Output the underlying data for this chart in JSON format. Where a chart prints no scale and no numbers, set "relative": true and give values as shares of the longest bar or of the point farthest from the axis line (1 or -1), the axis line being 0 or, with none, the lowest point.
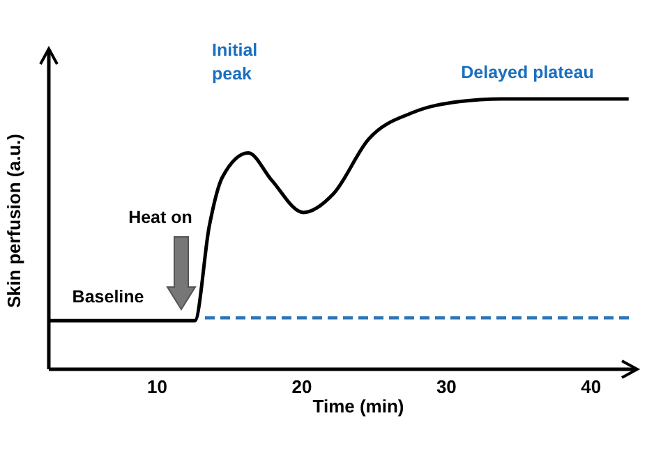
{
  "chart_data": {
    "type": "line",
    "xlabel": "Time (min)",
    "ylabel": "Skin perfusion (a.u.)",
    "relative": true,
    "xlim": [
      2.5,
      43
    ],
    "xticks": [
      10,
      20,
      30,
      40
    ],
    "marker": "none",
    "series": [
      {
        "color": "#000000",
        "line_style": "solid",
        "x": [
          2.5,
          12.6,
          13.6,
          14.5,
          16.3,
          17.9,
          20.1,
          22.2,
          24.6,
          27.7,
          30.9,
          33.8,
          42.6
        ],
        "values": [
          0.18,
          0.18,
          0.53,
          0.71,
          0.8,
          0.7,
          0.58,
          0.65,
          0.85,
          0.95,
          0.99,
          1,
          1
        ]
      },
      {
        "color": "#2e75b6",
        "line_style": "dashed",
        "x": [
          13.3,
          42.7
        ],
        "values": [
          0.19,
          0.19
        ]
      }
    ],
    "annotations": [
      {
        "text": "Baseline",
        "x": 6.6,
        "y": 0.18
      },
      "Heat on",
      "Initial peak",
      {
        "text": "Delayed plateau",
        "x": 35.6,
        "y": 1
      }
    ]
  }
}
